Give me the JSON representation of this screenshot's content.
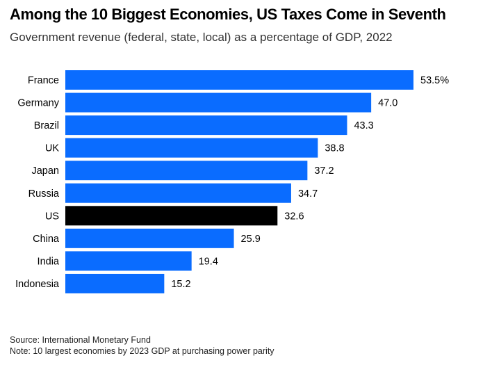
{
  "chart_data": {
    "type": "bar",
    "orientation": "horizontal",
    "title": "Among the 10 Biggest Economies, US Taxes Come in Seventh",
    "subtitle": "Government revenue (federal, state, local) as a percentage of GDP, 2022",
    "categories": [
      "France",
      "Germany",
      "Brazil",
      "UK",
      "Japan",
      "Russia",
      "US",
      "China",
      "India",
      "Indonesia"
    ],
    "values": [
      53.5,
      47.0,
      43.3,
      38.8,
      37.2,
      34.7,
      32.6,
      25.9,
      19.4,
      15.2
    ],
    "value_labels": [
      "53.5%",
      "47.0",
      "43.3",
      "38.8",
      "37.2",
      "34.7",
      "32.6",
      "25.9",
      "19.4",
      "15.2"
    ],
    "highlight": "US",
    "colors": {
      "default": "#0a6cff",
      "highlight": "#000000"
    },
    "xlim": [
      0,
      60
    ],
    "grid": false,
    "xlabel": "",
    "ylabel": ""
  },
  "footer": {
    "source": "Source: International Monetary Fund",
    "note": "Note: 10 largest economies by 2023 GDP at purchasing power parity"
  }
}
